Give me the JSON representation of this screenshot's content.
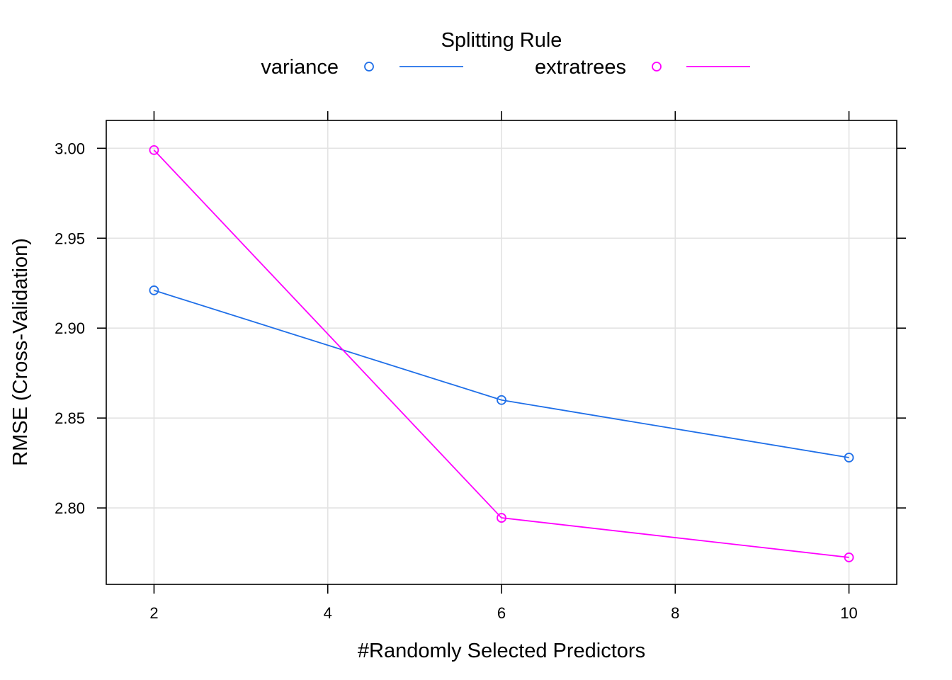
{
  "chart_data": {
    "type": "line",
    "title": "",
    "xlabel": "#Randomly Selected Predictors",
    "ylabel": "RMSE (Cross-Validation)",
    "xlim": [
      1.45,
      10.55
    ],
    "ylim": [
      2.7575,
      3.0155
    ],
    "x_ticks": [
      2,
      4,
      6,
      8,
      10
    ],
    "y_ticks": [
      2.8,
      2.85,
      2.9,
      2.95,
      3.0
    ],
    "x_tick_labels": [
      "2",
      "4",
      "6",
      "8",
      "10"
    ],
    "y_tick_labels": [
      "2.80",
      "2.85",
      "2.90",
      "2.95",
      "3.00"
    ],
    "grid": true,
    "legend": {
      "title": "Splitting Rule",
      "position": "top"
    },
    "x": [
      2,
      6,
      10
    ],
    "series": [
      {
        "name": "variance",
        "values": [
          2.921,
          2.86,
          2.828
        ],
        "color": "#1f6fe8"
      },
      {
        "name": "extratrees",
        "values": [
          2.999,
          2.7945,
          2.7725
        ],
        "color": "#ff00ff"
      }
    ]
  }
}
